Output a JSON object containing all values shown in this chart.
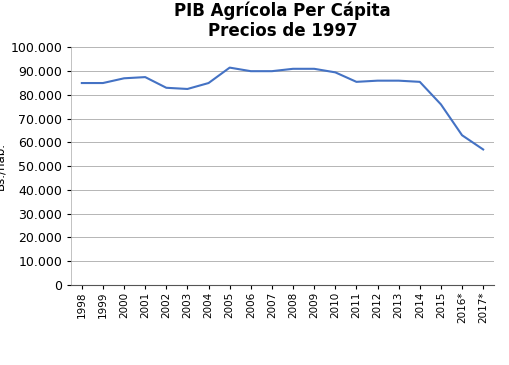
{
  "title_line1": "PIB Agrícola Per Cápita",
  "title_line2": "Precios de 1997",
  "ylabel": "Bs./hab.",
  "years": [
    "1998",
    "1999",
    "2000",
    "2001",
    "2002",
    "2003",
    "2004",
    "2005",
    "2006",
    "2007",
    "2008",
    "2009",
    "2010",
    "2011",
    "2012",
    "2013",
    "2014",
    "2015",
    "2016*",
    "2017*"
  ],
  "values": [
    85000,
    85000,
    87000,
    87500,
    83000,
    82500,
    85000,
    91500,
    90000,
    90000,
    91000,
    91000,
    89500,
    85500,
    86000,
    86000,
    85500,
    76000,
    63000,
    57000
  ],
  "line_color": "#4472C4",
  "line_width": 1.5,
  "ylim": [
    0,
    100000
  ],
  "ytick_step": 10000,
  "background_color": "#ffffff",
  "plot_bg_color": "#ffffff",
  "grid_color": "#aaaaaa",
  "title_fontsize": 12,
  "axis_label_fontsize": 8.5,
  "tick_fontsize": 9,
  "xtick_fontsize": 7.5
}
